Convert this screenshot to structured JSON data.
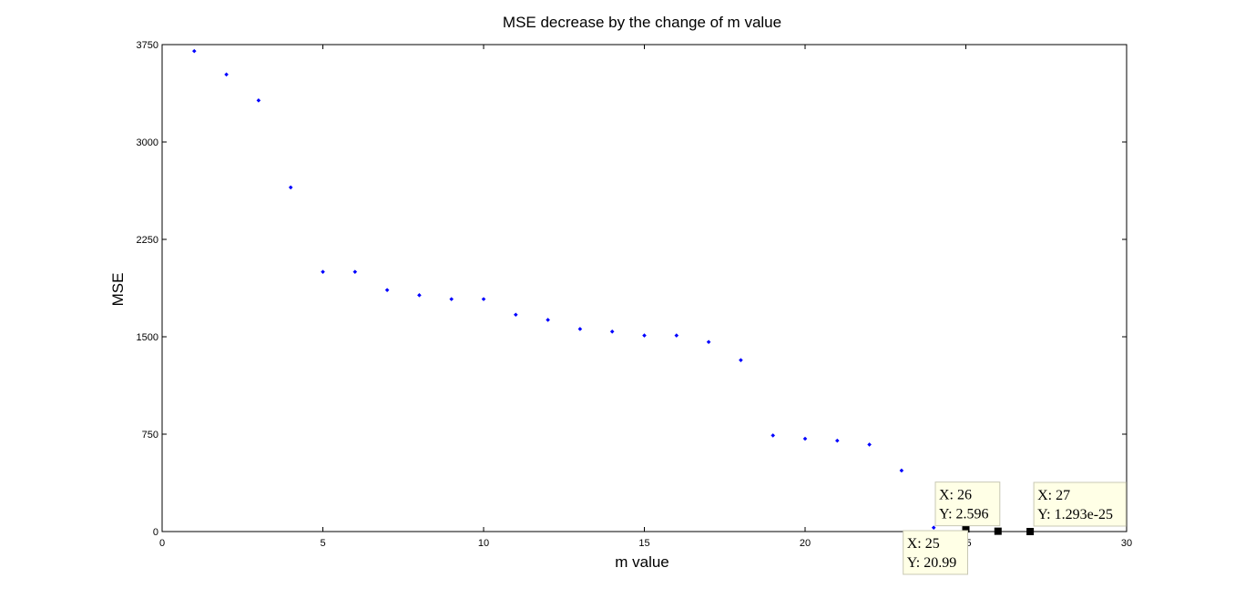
{
  "chart_data": {
    "type": "scatter",
    "title": "MSE decrease by the change of m value",
    "xlabel": "m value",
    "ylabel": "MSE",
    "xlim": [
      0,
      30
    ],
    "ylim": [
      0,
      3750
    ],
    "xticks": [
      "0",
      "5",
      "10",
      "15",
      "20",
      "25",
      "30"
    ],
    "yticks": [
      "0",
      "750",
      "1500",
      "2250",
      "3000",
      "3750"
    ],
    "grid": false,
    "marker_color": "#0000ff",
    "series": [
      {
        "x": [
          1,
          2,
          3,
          4,
          5,
          6,
          7,
          8,
          9,
          10,
          11,
          12,
          13,
          14,
          15,
          16,
          17,
          18,
          19,
          20,
          21,
          22,
          23,
          24,
          25,
          26,
          27
        ],
        "y": [
          3700,
          3520,
          3320,
          2650,
          2000,
          2000,
          1860,
          1820,
          1790,
          1790,
          1670,
          1630,
          1560,
          1540,
          1510,
          1510,
          1460,
          1320,
          740,
          715,
          700,
          670,
          470,
          30,
          20.99,
          2.596,
          0
        ]
      }
    ],
    "datatips": [
      {
        "x": 25,
        "y": 20.99,
        "x_text": "X: 25",
        "y_text": "Y: 20.99",
        "position": "below-left"
      },
      {
        "x": 26,
        "y": 2.596,
        "x_text": "X: 26",
        "y_text": "Y: 2.596",
        "position": "above-left"
      },
      {
        "x": 27,
        "y": 1.293e-25,
        "x_text": "X: 27",
        "y_text": "Y: 1.293e-25",
        "position": "above-right"
      }
    ]
  }
}
